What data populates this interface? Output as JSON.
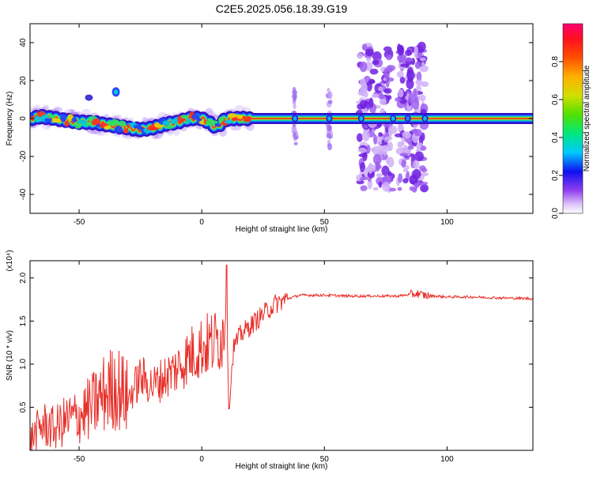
{
  "title": "C2E5.2025.056.18.39.G19",
  "colors": {
    "snr_line": "#e8302a",
    "ridge": "#e23a2c",
    "axis": "#000000"
  },
  "chart_data": [
    {
      "type": "heatmap",
      "xlabel": "Height of straight line (km)",
      "ylabel": "Frequency (Hz)",
      "xlim": [
        -70,
        135
      ],
      "ylim": [
        -50,
        50
      ],
      "x_ticks": [
        "-50",
        "0",
        "50",
        "100"
      ],
      "y_ticks": [
        "40",
        "20",
        "0",
        "-20",
        "-40"
      ],
      "colorbar": {
        "label": "Normalized spectral amplitude",
        "range": [
          0,
          1
        ],
        "ticks": [
          "0.0",
          "0.2",
          "0.4",
          "0.6",
          "0.8"
        ],
        "colormap": "rainbow (white-violet-blue-cyan-green-yellow-red)"
      },
      "ridge_frequency": [
        [
          -70,
          0
        ],
        [
          -65,
          1
        ],
        [
          -60,
          0
        ],
        [
          -55,
          -1
        ],
        [
          -50,
          -2
        ],
        [
          -45,
          -2
        ],
        [
          -40,
          -3
        ],
        [
          -35,
          -4
        ],
        [
          -30,
          -5
        ],
        [
          -25,
          -6
        ],
        [
          -20,
          -5
        ],
        [
          -15,
          -3
        ],
        [
          -10,
          -2
        ],
        [
          -5,
          0
        ],
        [
          0,
          0
        ],
        [
          3,
          -2
        ],
        [
          6,
          -5
        ],
        [
          9,
          -1
        ],
        [
          12,
          0
        ],
        [
          20,
          0
        ],
        [
          30,
          0
        ],
        [
          50,
          0
        ],
        [
          65,
          0
        ],
        [
          90,
          0
        ],
        [
          135,
          0
        ]
      ],
      "grid": false
    },
    {
      "type": "line",
      "xlabel": "Height of straight line (km)",
      "ylabel": "SNR (10 * v/v)",
      "scale_note": "(x10⁴)",
      "xlim": [
        -70,
        135
      ],
      "ylim": [
        0,
        2.2
      ],
      "x_ticks": [
        "-50",
        "0",
        "50",
        "100"
      ],
      "y_ticks": [
        "0.5",
        "1.0",
        "1.5",
        "2.0"
      ],
      "series": [
        {
          "values_xy": [
            [
              -70,
              0.12
            ],
            [
              -65,
              0.3
            ],
            [
              -60,
              0.25
            ],
            [
              -55,
              0.35
            ],
            [
              -50,
              0.4
            ],
            [
              -45,
              0.5
            ],
            [
              -40,
              0.65
            ],
            [
              -35,
              0.75
            ],
            [
              -30,
              0.6
            ],
            [
              -25,
              0.85
            ],
            [
              -20,
              0.75
            ],
            [
              -15,
              0.85
            ],
            [
              -10,
              0.95
            ],
            [
              -5,
              1.1
            ],
            [
              0,
              1.2
            ],
            [
              5,
              1.25
            ],
            [
              9,
              1.35
            ],
            [
              10,
              2.15
            ],
            [
              11,
              0.5
            ],
            [
              13,
              1.2
            ],
            [
              16,
              1.35
            ],
            [
              20,
              1.45
            ],
            [
              25,
              1.58
            ],
            [
              30,
              1.7
            ],
            [
              35,
              1.76
            ],
            [
              40,
              1.8
            ],
            [
              50,
              1.8
            ],
            [
              60,
              1.79
            ],
            [
              70,
              1.79
            ],
            [
              80,
              1.79
            ],
            [
              88,
              1.82
            ],
            [
              90,
              1.8
            ],
            [
              100,
              1.78
            ],
            [
              110,
              1.78
            ],
            [
              120,
              1.77
            ],
            [
              135,
              1.76
            ]
          ]
        }
      ],
      "grid": false
    }
  ]
}
